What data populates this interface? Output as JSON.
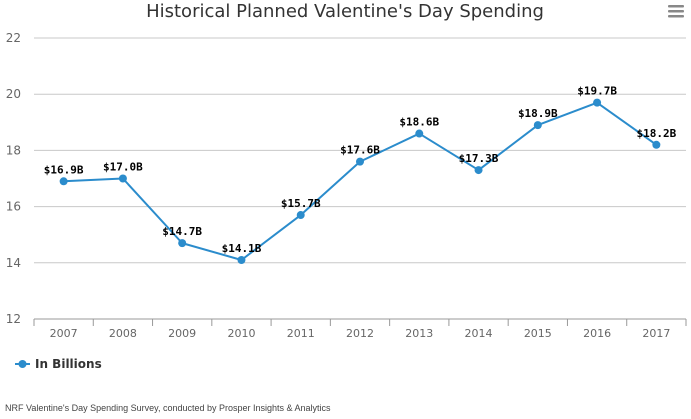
{
  "chart_data": {
    "type": "line",
    "title": "Historical Planned Valentine's Day Spending",
    "categories": [
      "2007",
      "2008",
      "2009",
      "2010",
      "2011",
      "2012",
      "2013",
      "2014",
      "2015",
      "2016",
      "2017"
    ],
    "series": [
      {
        "name": "In Billions",
        "values": [
          16.9,
          17.0,
          14.7,
          14.1,
          15.7,
          17.6,
          18.6,
          17.3,
          18.9,
          19.7,
          18.2
        ],
        "labels": [
          "$16.9B",
          "$17.0B",
          "$14.7B",
          "$14.1B",
          "$15.7B",
          "$17.6B",
          "$18.6B",
          "$17.3B",
          "$18.9B",
          "$19.7B",
          "$18.2B"
        ],
        "color": "#2b8ccc"
      }
    ],
    "yticks": [
      "12",
      "14",
      "16",
      "18",
      "20",
      "22"
    ],
    "ylim": [
      12,
      22
    ],
    "grid": true,
    "legend_position": "bottom-left"
  },
  "menu_icon": "hamburger-menu-icon",
  "credits": "NRF Valentine's Day Spending Survey, conducted by Prosper Insights & Analytics"
}
